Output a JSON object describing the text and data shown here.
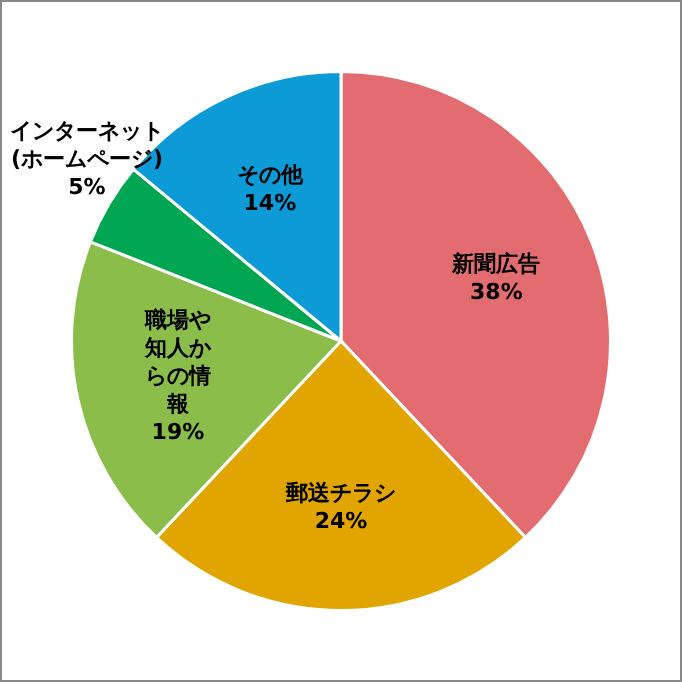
{
  "chart_data": {
    "type": "pie",
    "categories": [
      "新聞広告",
      "郵送チラシ",
      "職場や知人からの情報",
      "インターネット(ホームページ)",
      "その他"
    ],
    "values": [
      38,
      24,
      19,
      5,
      14
    ],
    "value_labels": [
      "38%",
      "24%",
      "19%",
      "5%",
      "14%"
    ],
    "colors": [
      "#e36c70",
      "#e2a500",
      "#8bbd4b",
      "#00a651",
      "#0d9bd7"
    ],
    "legend": false
  }
}
